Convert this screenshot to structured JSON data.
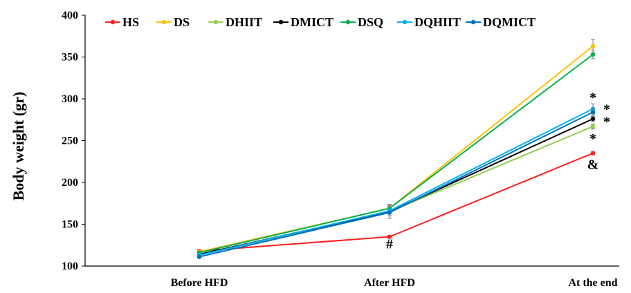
{
  "chart_data": {
    "type": "line",
    "title": "",
    "xlabel": "",
    "ylabel": "Body weight (gr)",
    "ylim": [
      100,
      400
    ],
    "yticks": [
      100,
      150,
      200,
      250,
      300,
      350,
      400
    ],
    "grid": false,
    "legend_position": "top",
    "categories": [
      "Before HFD",
      "After HFD",
      "At the end"
    ],
    "series": [
      {
        "name": "HS",
        "color": "#ff1f1f",
        "values": [
          118,
          135,
          235
        ],
        "errors": [
          1,
          1.5,
          2
        ]
      },
      {
        "name": "DS",
        "color": "#ffc000",
        "values": [
          117,
          169,
          363
        ],
        "errors": [
          1,
          5,
          8
        ]
      },
      {
        "name": "DHIIT",
        "color": "#92d050",
        "values": [
          113,
          165,
          267
        ],
        "errors": [
          1,
          5,
          3
        ]
      },
      {
        "name": "DMICT",
        "color": "#000000",
        "values": [
          114,
          165,
          276
        ],
        "errors": [
          1,
          5,
          3
        ]
      },
      {
        "name": "DSQ",
        "color": "#00b050",
        "values": [
          116,
          169,
          353
        ],
        "errors": [
          1,
          4,
          5
        ]
      },
      {
        "name": "DQHIIT",
        "color": "#00b0f0",
        "values": [
          113,
          166,
          288
        ],
        "errors": [
          1,
          6,
          6
        ]
      },
      {
        "name": "DQMICT",
        "color": "#0070c0",
        "values": [
          111,
          164,
          284
        ],
        "errors": [
          1,
          7,
          4
        ]
      }
    ],
    "annotations": [
      {
        "text": "#",
        "x": "After HFD",
        "y": 127
      },
      {
        "text": "&",
        "x": "At the end",
        "y": 222
      },
      {
        "text": "*",
        "x": "At the end",
        "y": 302
      },
      {
        "text": "*",
        "x": "At the end",
        "y": 288
      },
      {
        "text": "*",
        "x": "At the end",
        "y": 273
      },
      {
        "text": "*",
        "x": "At the end",
        "y": 253
      }
    ]
  }
}
